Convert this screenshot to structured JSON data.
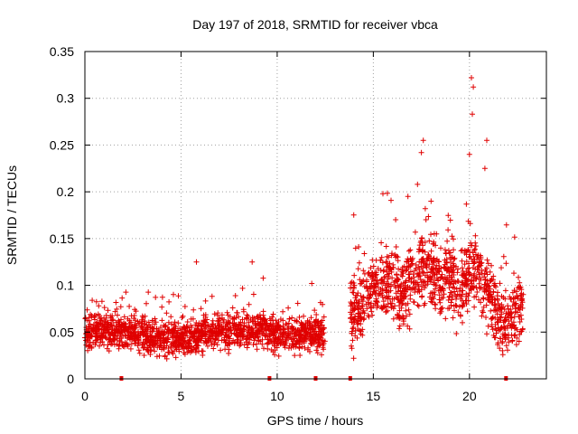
{
  "chart_data": {
    "type": "scatter",
    "title": "Day 197 of 2018, SRMTID for receiver vbca",
    "xlabel": "GPS time / hours",
    "ylabel": "SRMTID / TECUs",
    "xlim": [
      0,
      24
    ],
    "ylim": [
      0,
      0.35
    ],
    "xticks": [
      0,
      5,
      10,
      15,
      20
    ],
    "xtick_labels": [
      "0",
      "5",
      "10",
      "15",
      "20"
    ],
    "yticks": [
      0,
      0.05,
      0.1,
      0.15,
      0.2,
      0.25,
      0.3,
      0.35
    ],
    "ytick_labels": [
      "0",
      "0.05",
      "0.1",
      "0.15",
      "0.2",
      "0.25",
      "0.3",
      "0.35"
    ],
    "grid": true,
    "marker": "+",
    "color": "#e00000",
    "segments": [
      {
        "x_start": 0.0,
        "x_end": 12.5,
        "count": 1500,
        "baseline": 0.045,
        "spread": 0.02
      },
      {
        "x_start": 13.8,
        "x_end": 22.8,
        "count": 1100,
        "baseline": 0.09,
        "spread": 0.04
      }
    ],
    "envelope": [
      [
        0,
        0.05
      ],
      [
        2,
        0.05
      ],
      [
        4,
        0.042
      ],
      [
        6,
        0.048
      ],
      [
        8,
        0.052
      ],
      [
        9,
        0.055
      ],
      [
        10,
        0.045
      ],
      [
        11,
        0.048
      ],
      [
        12,
        0.05
      ],
      [
        12.5,
        0.045
      ],
      [
        13.8,
        0.07
      ],
      [
        14.5,
        0.08
      ],
      [
        15,
        0.1
      ],
      [
        16,
        0.1
      ],
      [
        16.5,
        0.09
      ],
      [
        17,
        0.11
      ],
      [
        17.5,
        0.12
      ],
      [
        18,
        0.12
      ],
      [
        18.5,
        0.1
      ],
      [
        19,
        0.11
      ],
      [
        19.5,
        0.09
      ],
      [
        20,
        0.12
      ],
      [
        20.5,
        0.11
      ],
      [
        21,
        0.09
      ],
      [
        21.5,
        0.07
      ],
      [
        22,
        0.06
      ],
      [
        22.8,
        0.08
      ]
    ],
    "highlights": [
      {
        "x": 5.8,
        "y": 0.125
      },
      {
        "x": 8.7,
        "y": 0.125
      },
      {
        "x": 11.8,
        "y": 0.102
      },
      {
        "x": 17.5,
        "y": 0.242
      },
      {
        "x": 17.6,
        "y": 0.255
      },
      {
        "x": 17.3,
        "y": 0.208
      },
      {
        "x": 20.1,
        "y": 0.322
      },
      {
        "x": 20.2,
        "y": 0.312
      },
      {
        "x": 20.15,
        "y": 0.283
      },
      {
        "x": 20.0,
        "y": 0.24
      },
      {
        "x": 20.9,
        "y": 0.255
      },
      {
        "x": 20.8,
        "y": 0.225
      },
      {
        "x": 15.5,
        "y": 0.198
      },
      {
        "x": 16.8,
        "y": 0.195
      },
      {
        "x": 18.0,
        "y": 0.19
      }
    ],
    "data_gaps_at_zero": [
      1.9,
      9.6,
      12.0,
      13.8,
      21.9
    ]
  }
}
